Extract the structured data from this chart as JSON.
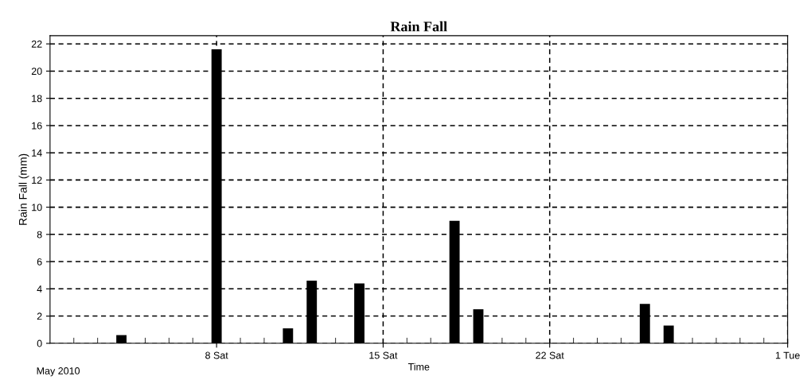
{
  "chart_data": {
    "type": "bar",
    "title": "Rain Fall",
    "xlabel": "Time",
    "ylabel": "Rain Fall (mm)",
    "annotations": [
      "May 2010"
    ],
    "x": [
      "2010-05-04",
      "2010-05-08",
      "2010-05-11",
      "2010-05-12",
      "2010-05-14",
      "2010-05-18",
      "2010-05-19",
      "2010-05-26",
      "2010-05-27"
    ],
    "values": [
      0.6,
      21.6,
      1.1,
      4.6,
      4.4,
      9.0,
      2.5,
      2.9,
      1.3
    ],
    "color": "#000000",
    "xlim": [
      "2010-05-01",
      "2010-06-01"
    ],
    "xticks": [
      {
        "value": "2010-05-02",
        "label": null
      },
      {
        "value": "2010-05-03",
        "label": null
      },
      {
        "value": "2010-05-04",
        "label": null
      },
      {
        "value": "2010-05-05",
        "label": null
      },
      {
        "value": "2010-05-06",
        "label": null
      },
      {
        "value": "2010-05-07",
        "label": null
      },
      {
        "value": "2010-05-08",
        "label": "8 Sat"
      },
      {
        "value": "2010-05-09",
        "label": null
      },
      {
        "value": "2010-05-10",
        "label": null
      },
      {
        "value": "2010-05-11",
        "label": null
      },
      {
        "value": "2010-05-12",
        "label": null
      },
      {
        "value": "2010-05-13",
        "label": null
      },
      {
        "value": "2010-05-14",
        "label": null
      },
      {
        "value": "2010-05-15",
        "label": "15 Sat"
      },
      {
        "value": "2010-05-16",
        "label": null
      },
      {
        "value": "2010-05-17",
        "label": null
      },
      {
        "value": "2010-05-18",
        "label": null
      },
      {
        "value": "2010-05-19",
        "label": null
      },
      {
        "value": "2010-05-20",
        "label": null
      },
      {
        "value": "2010-05-21",
        "label": null
      },
      {
        "value": "2010-05-22",
        "label": "22 Sat"
      },
      {
        "value": "2010-05-23",
        "label": null
      },
      {
        "value": "2010-05-24",
        "label": null
      },
      {
        "value": "2010-05-25",
        "label": null
      },
      {
        "value": "2010-05-26",
        "label": null
      },
      {
        "value": "2010-05-27",
        "label": null
      },
      {
        "value": "2010-05-28",
        "label": null
      },
      {
        "value": "2010-05-29",
        "label": null
      },
      {
        "value": "2010-05-30",
        "label": null
      },
      {
        "value": "2010-05-31",
        "label": null
      },
      {
        "value": "2010-06-01",
        "label": "1 Tue"
      }
    ],
    "ylim": [
      0,
      22.6
    ],
    "yticks": [
      0,
      2,
      4,
      6,
      8,
      10,
      12,
      14,
      16,
      18,
      20,
      22
    ],
    "grid": true
  }
}
